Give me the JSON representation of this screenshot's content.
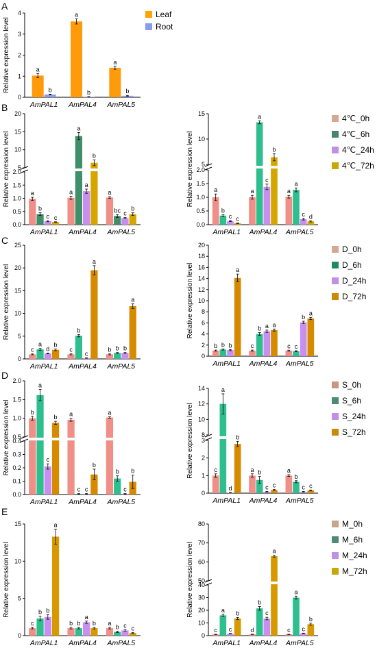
{
  "figure": {
    "panels": [
      {
        "letter": "A",
        "legend": [
          {
            "label": "Leaf",
            "color": "#ffa500"
          },
          {
            "label": "Root",
            "color": "#8a9cf0"
          }
        ]
      },
      {
        "letter": "B",
        "legend": [
          {
            "label": "4℃_0h",
            "color": "#d5a892"
          },
          {
            "label": "4℃_6h",
            "color": "#47866d"
          },
          {
            "label": "4℃_24h",
            "color": "#c190e6"
          },
          {
            "label": "4℃_72h",
            "color": "#c8a808"
          }
        ]
      },
      {
        "letter": "C",
        "legend": [
          {
            "label": "D_0h",
            "color": "#d5a892"
          },
          {
            "label": "D_6h",
            "color": "#1f8a62"
          },
          {
            "label": "D_24h",
            "color": "#c190e6"
          },
          {
            "label": "D_72h",
            "color": "#c88a08"
          }
        ]
      },
      {
        "letter": "D",
        "legend": [
          {
            "label": "S_0h",
            "color": "#c9967f"
          },
          {
            "label": "S_6h",
            "color": "#4f8a72"
          },
          {
            "label": "S_24h",
            "color": "#c190e6"
          },
          {
            "label": "S_72h",
            "color": "#c88a08"
          }
        ]
      },
      {
        "letter": "E",
        "legend": [
          {
            "label": "M_0h",
            "color": "#c9a58a"
          },
          {
            "label": "M_6h",
            "color": "#4f8a72"
          },
          {
            "label": "M_24h",
            "color": "#c190e6"
          },
          {
            "label": "M_72h",
            "color": "#c8a808"
          }
        ]
      }
    ]
  },
  "chart_data": [
    {
      "id": "A",
      "type": "bar",
      "ylabel": "Relative expression level",
      "categories": [
        "AmPAL1",
        "AmPAL4",
        "AmPAL5"
      ],
      "ylim": [
        0,
        4
      ],
      "yticks": [
        0,
        1,
        2,
        3,
        4
      ],
      "series": [
        {
          "name": "Leaf",
          "color": "#ff9a0a",
          "values": [
            1.03,
            3.6,
            1.4
          ],
          "errors": [
            0.1,
            0.12,
            0.07
          ],
          "letters": [
            "a",
            "a",
            "a"
          ]
        },
        {
          "name": "Root",
          "color": "#8a9cf0",
          "values": [
            0.13,
            0.02,
            0.07
          ],
          "errors": [
            0.02,
            0.01,
            0.02
          ],
          "letters": [
            "b",
            "b",
            "b"
          ]
        }
      ]
    },
    {
      "id": "B-left",
      "type": "bar",
      "ylabel": "Relative expression level",
      "categories": [
        "AmPAL1",
        "AmPAL4",
        "AmPAL5"
      ],
      "broken_axis": true,
      "lower": {
        "range": [
          0,
          2.0
        ],
        "ticks": [
          "0.0",
          "0.5",
          "1.0",
          "1.5",
          "2.0"
        ]
      },
      "upper": {
        "range": [
          5,
          20
        ],
        "ticks": [
          "5",
          "10",
          "15",
          "20"
        ]
      },
      "series": [
        {
          "name": "4℃_0h",
          "color": "#ef8f88",
          "values": [
            0.98,
            1.02,
            1.03
          ],
          "errors": [
            0.06,
            0.06,
            0.03
          ],
          "letters": [
            "a",
            "a",
            "a"
          ]
        },
        {
          "name": "4℃_6h",
          "color": "#3f8f6a",
          "values": [
            0.4,
            13.8,
            0.33
          ],
          "errors": [
            0.05,
            1.0,
            0.05
          ],
          "letters": [
            "b",
            "a",
            "bc"
          ]
        },
        {
          "name": "4℃_24h",
          "color": "#c98ff0",
          "values": [
            0.13,
            1.27,
            0.25
          ],
          "errors": [
            0.02,
            0.08,
            0.02
          ],
          "letters": [
            "c",
            "a",
            "c"
          ]
        },
        {
          "name": "4℃_72h",
          "color": "#d6a600",
          "values": [
            0.1,
            6.4,
            0.4
          ],
          "errors": [
            0.01,
            0.8,
            0.05
          ],
          "letters": [
            "c",
            "b",
            "b"
          ]
        }
      ]
    },
    {
      "id": "B-right",
      "type": "bar",
      "ylabel": "Relative expression level",
      "categories": [
        "AmPAL1",
        "AmPAL4",
        "AmPAL5"
      ],
      "broken_axis": true,
      "lower": {
        "range": [
          0,
          2.0
        ],
        "ticks": [
          "0.0",
          "0.5",
          "1.0",
          "1.5",
          "2.0"
        ]
      },
      "upper": {
        "range": [
          5,
          15
        ],
        "ticks": [
          "5",
          "10",
          "15"
        ]
      },
      "series": [
        {
          "name": "4℃_0h",
          "color": "#ef8f88",
          "values": [
            1.0,
            1.0,
            1.02
          ],
          "errors": [
            0.12,
            0.07,
            0.05
          ],
          "letters": [
            "a",
            "a",
            "a"
          ]
        },
        {
          "name": "4℃_6h",
          "color": "#2fbf8f",
          "values": [
            0.33,
            13.3,
            1.27
          ],
          "errors": [
            0.03,
            0.3,
            0.07
          ],
          "letters": [
            "b",
            "a",
            "a"
          ]
        },
        {
          "name": "4℃_24h",
          "color": "#c98ff0",
          "values": [
            0.13,
            1.38,
            0.2
          ],
          "errors": [
            0.02,
            0.1,
            0.03
          ],
          "letters": [
            "c",
            "c",
            "c"
          ]
        },
        {
          "name": "4℃_72h",
          "color": "#d6a600",
          "values": [
            0.05,
            6.4,
            0.12
          ],
          "errors": [
            0.01,
            0.7,
            0.02
          ],
          "letters": [
            "c",
            "b",
            "d"
          ]
        }
      ]
    },
    {
      "id": "C-left",
      "type": "bar",
      "ylabel": "Relative expression level",
      "categories": [
        "AmPAL1",
        "AmPAL4",
        "AmPAL5"
      ],
      "ylim": [
        0,
        25
      ],
      "yticks": [
        0,
        5,
        10,
        15,
        20,
        25
      ],
      "series": [
        {
          "name": "D_0h",
          "color": "#ef8f88",
          "values": [
            1.0,
            1.0,
            1.0
          ],
          "errors": [
            0.1,
            0.1,
            0.1
          ],
          "letters": [
            "c",
            "c",
            "b"
          ]
        },
        {
          "name": "D_6h",
          "color": "#2fbf8f",
          "values": [
            2.1,
            5.1,
            1.3
          ],
          "errors": [
            0.2,
            0.25,
            0.1
          ],
          "letters": [
            "a",
            "b",
            "b"
          ]
        },
        {
          "name": "D_24h",
          "color": "#c98ff0",
          "values": [
            1.2,
            0.2,
            1.3
          ],
          "errors": [
            0.1,
            0.05,
            0.1
          ],
          "letters": [
            "d",
            "c",
            "b"
          ]
        },
        {
          "name": "D_72h",
          "color": "#d68a00",
          "values": [
            2.0,
            19.5,
            11.6
          ],
          "errors": [
            0.2,
            1.0,
            0.5
          ],
          "letters": [
            "b",
            "a",
            "a"
          ]
        }
      ]
    },
    {
      "id": "C-right",
      "type": "bar",
      "ylabel": "Relative expression level",
      "categories": [
        "AmPAL1",
        "AmPAL4",
        "AmPAL5"
      ],
      "ylim": [
        0,
        20
      ],
      "yticks": [
        0,
        2,
        4,
        6,
        8,
        10,
        12,
        14,
        16,
        18,
        20
      ],
      "series": [
        {
          "name": "D_0h",
          "color": "#ef8f88",
          "values": [
            1.0,
            1.0,
            1.0
          ],
          "errors": [
            0.1,
            0.1,
            0.08
          ],
          "letters": [
            "b",
            "c",
            "c"
          ]
        },
        {
          "name": "D_6h",
          "color": "#2fbf8f",
          "values": [
            1.2,
            4.0,
            0.9
          ],
          "errors": [
            0.1,
            0.25,
            0.08
          ],
          "letters": [
            "b",
            "b",
            "c"
          ]
        },
        {
          "name": "D_24h",
          "color": "#c98ff0",
          "values": [
            1.1,
            4.5,
            6.1
          ],
          "errors": [
            0.1,
            0.2,
            0.2
          ],
          "letters": [
            "b",
            "a",
            "b"
          ]
        },
        {
          "name": "D_72h",
          "color": "#d68a00",
          "values": [
            14.1,
            4.7,
            6.8
          ],
          "errors": [
            0.7,
            0.2,
            0.2
          ],
          "letters": [
            "a",
            "a",
            "a"
          ]
        }
      ]
    },
    {
      "id": "D-left",
      "type": "bar",
      "ylabel": "Relative expression level",
      "categories": [
        "AmPAL1",
        "AmPAL4",
        "AmPAL5"
      ],
      "broken_axis": true,
      "lower": {
        "range": [
          0,
          0.4
        ],
        "ticks": [
          "0.0",
          "0.1",
          "0.2",
          "0.3",
          "0.4"
        ]
      },
      "upper": {
        "range": [
          0.5,
          2.0
        ],
        "ticks": [
          "0.5",
          "1.0",
          "1.5",
          "2.0"
        ]
      },
      "series": [
        {
          "name": "S_0h",
          "color": "#ef8f88",
          "values": [
            1.0,
            0.96,
            1.02
          ],
          "errors": [
            0.05,
            0.04,
            0.02
          ],
          "letters": [
            "b",
            "a",
            "a"
          ]
        },
        {
          "name": "S_6h",
          "color": "#2fbf8f",
          "values": [
            1.62,
            0.005,
            0.12
          ],
          "errors": [
            0.15,
            0.002,
            0.02
          ],
          "letters": [
            "a",
            "c",
            "b"
          ]
        },
        {
          "name": "S_24h",
          "color": "#c98ff0",
          "values": [
            0.21,
            0.005,
            0.005
          ],
          "errors": [
            0.02,
            0.002,
            0.002
          ],
          "letters": [
            "c",
            "c",
            "c"
          ]
        },
        {
          "name": "S_72h",
          "color": "#d68a00",
          "values": [
            0.88,
            0.15,
            0.095
          ],
          "errors": [
            0.04,
            0.04,
            0.05
          ],
          "letters": [
            "b",
            "b",
            "b"
          ]
        }
      ]
    },
    {
      "id": "D-right",
      "type": "bar",
      "ylabel": "Relative expression level",
      "categories": [
        "AmPAL1",
        "AmPAL4",
        "AmPAL5"
      ],
      "broken_axis": true,
      "lower": {
        "range": [
          0,
          3
        ],
        "ticks": [
          "0",
          "1",
          "2",
          "3"
        ]
      },
      "upper": {
        "range": [
          8,
          14
        ],
        "ticks": [
          "8",
          "10",
          "12",
          "14"
        ]
      },
      "series": [
        {
          "name": "S_0h",
          "color": "#ef8f88",
          "values": [
            1.0,
            1.0,
            1.0
          ],
          "errors": [
            0.1,
            0.1,
            0.05
          ],
          "letters": [
            "c",
            "a",
            "a"
          ]
        },
        {
          "name": "S_6h",
          "color": "#2fbf8f",
          "values": [
            12.0,
            0.75,
            0.65
          ],
          "errors": [
            1.3,
            0.2,
            0.06
          ],
          "letters": [
            "a",
            "b",
            "b"
          ]
        },
        {
          "name": "S_24h",
          "color": "#c98ff0",
          "values": [
            0.02,
            0.08,
            0.08
          ],
          "errors": [
            0.01,
            0.02,
            0.02
          ],
          "letters": [
            "d",
            "c",
            "c"
          ]
        },
        {
          "name": "S_72h",
          "color": "#d68a00",
          "values": [
            2.8,
            0.18,
            0.15
          ],
          "errors": [
            0.15,
            0.03,
            0.02
          ],
          "letters": [
            "b",
            "c",
            "c"
          ]
        }
      ]
    },
    {
      "id": "E-left",
      "type": "bar",
      "ylabel": "Relative expression level",
      "categories": [
        "AmPAL1",
        "AmPAL4",
        "AmPAL5"
      ],
      "ylim": [
        0,
        15
      ],
      "yticks": [
        0,
        5,
        10,
        15
      ],
      "series": [
        {
          "name": "M_0h",
          "color": "#ef8f88",
          "values": [
            1.0,
            1.0,
            1.0
          ],
          "errors": [
            0.1,
            0.1,
            0.1
          ],
          "letters": [
            "c",
            "b",
            "a"
          ]
        },
        {
          "name": "M_6h",
          "color": "#2fbf8f",
          "values": [
            2.3,
            1.0,
            0.5
          ],
          "errors": [
            0.3,
            0.1,
            0.1
          ],
          "letters": [
            "b",
            "b",
            "b"
          ]
        },
        {
          "name": "M_24h",
          "color": "#c98ff0",
          "values": [
            2.5,
            1.8,
            0.7
          ],
          "errors": [
            0.3,
            0.15,
            0.1
          ],
          "letters": [
            "b",
            "a",
            "c"
          ]
        },
        {
          "name": "M_72h",
          "color": "#d69a00",
          "values": [
            13.3,
            1.0,
            0.35
          ],
          "errors": [
            1.0,
            0.1,
            0.05
          ],
          "letters": [
            "a",
            "b",
            "c"
          ]
        }
      ]
    },
    {
      "id": "E-right",
      "type": "bar",
      "ylabel": "Relative expression level",
      "categories": [
        "AmPAL1",
        "AmPAL4",
        "AmPAL5"
      ],
      "broken_axis": true,
      "lower": {
        "range": [
          0,
          40
        ],
        "ticks": [
          "0",
          "10",
          "20",
          "30",
          "40"
        ]
      },
      "upper": {
        "range": [
          50,
          80
        ],
        "ticks": [
          "50",
          "60",
          "70",
          "80"
        ]
      },
      "series": [
        {
          "name": "M_0h",
          "color": "#ef8f88",
          "values": [
            1.0,
            1.0,
            1.0
          ],
          "errors": [
            0.1,
            0.1,
            0.1
          ],
          "letters": [
            "c",
            "d",
            "c"
          ]
        },
        {
          "name": "M_6h",
          "color": "#2fbf8f",
          "values": [
            16.0,
            21.5,
            30.0
          ],
          "errors": [
            0.8,
            1.5,
            1.2
          ],
          "letters": [
            "a",
            "b",
            "a"
          ]
        },
        {
          "name": "M_24h",
          "color": "#c98ff0",
          "values": [
            1.5,
            13.5,
            1.8
          ],
          "errors": [
            0.2,
            1.0,
            0.2
          ],
          "letters": [
            "c",
            "c",
            "c"
          ]
        },
        {
          "name": "M_72h",
          "color": "#d69a00",
          "values": [
            13.5,
            63.0,
            9.0
          ],
          "errors": [
            0.8,
            0.5,
            0.8
          ],
          "letters": [
            "b",
            "a",
            "b"
          ]
        }
      ]
    }
  ]
}
